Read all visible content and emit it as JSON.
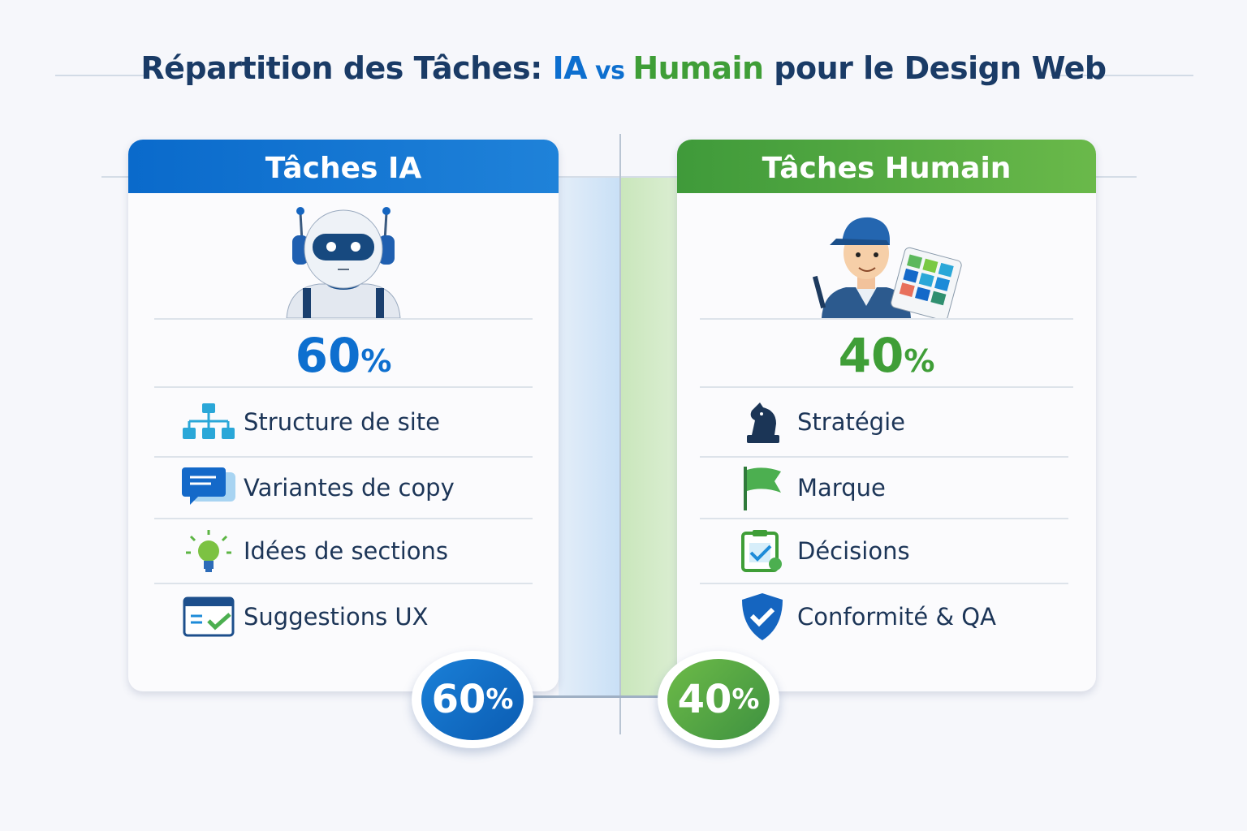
{
  "title": {
    "part1": "Répartition des Tâches: ",
    "ia": "IA",
    "vs": " vs ",
    "humain": "Humain",
    "part2": " pour le Design Web"
  },
  "ai": {
    "header": "Tâches IA",
    "percent": "60",
    "percent_sign": "%",
    "badge": "60",
    "color": "#0d6fcf",
    "items": [
      {
        "label": "Structure de site",
        "icon": "sitemap-icon"
      },
      {
        "label": "Variantes de copy",
        "icon": "chat-bubble-icon"
      },
      {
        "label": "Idées de sections",
        "icon": "lightbulb-icon"
      },
      {
        "label": "Suggestions UX",
        "icon": "browser-check-icon"
      }
    ]
  },
  "human": {
    "header": "Tâches Humain",
    "percent": "40",
    "percent_sign": "%",
    "badge": "40",
    "color": "#3f9e37",
    "items": [
      {
        "label": "Stratégie",
        "icon": "chess-knight-icon"
      },
      {
        "label": "Marque",
        "icon": "flag-icon"
      },
      {
        "label": "Décisions",
        "icon": "clipboard-check-icon"
      },
      {
        "label": "Conformité & QA",
        "icon": "shield-check-icon"
      }
    ]
  }
}
